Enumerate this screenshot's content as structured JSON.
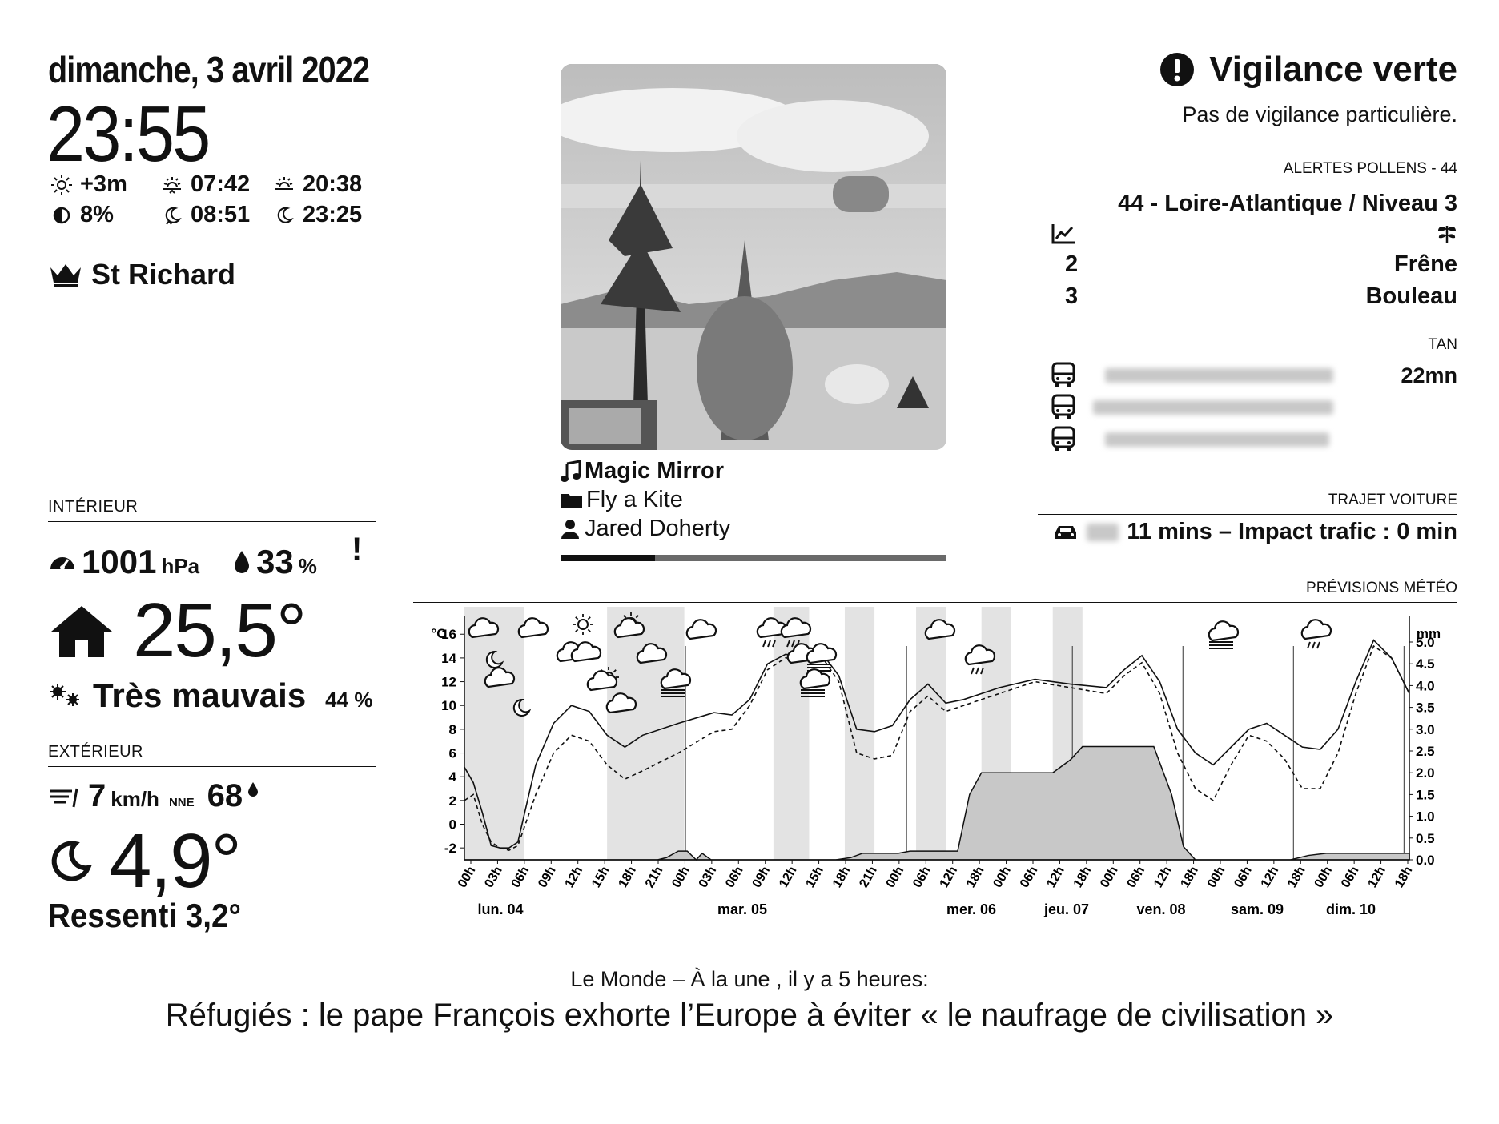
{
  "header": {
    "date": "dimanche, 3 avril 2022",
    "time": "23:55"
  },
  "sun_moon": {
    "daylight_delta": "+3m",
    "sunrise": "07:42",
    "sunset": "20:38",
    "moon_illumination": "8%",
    "moonrise": "08:51",
    "moonset": "23:25"
  },
  "saint": "St Richard",
  "indoor": {
    "section_title": "INTÉRIEUR",
    "pressure": "1001",
    "pressure_unit": "hPa",
    "humidity": "33",
    "humidity_unit": "%",
    "alert_mark": "!",
    "temperature": "25,5°",
    "air_quality": "Très mauvais",
    "air_quality_percent": "44 %"
  },
  "outdoor": {
    "section_title": "EXTÉRIEUR",
    "wind_speed": "7",
    "wind_unit": "km/h",
    "wind_dir": "NNE",
    "humidity": "68",
    "temperature": "4,9°",
    "feels_like": "Ressenti 3,2°"
  },
  "media": {
    "title": "Magic Mirror",
    "album": "Fly a Kite",
    "artist": "Jared Doherty",
    "progress": 0.245
  },
  "vigilance": {
    "title": "Vigilance verte",
    "subtitle": "Pas de vigilance particulière."
  },
  "pollen": {
    "section_title": "ALERTES POLLENS - 44",
    "region": "44 - Loire-Atlantique / Niveau 3",
    "items": [
      {
        "level": "2",
        "name": "Frêne"
      },
      {
        "level": "3",
        "name": "Bouleau"
      }
    ]
  },
  "tan": {
    "section_title": "TAN",
    "eta": "22mn",
    "icons": [
      "bus-icon",
      "bus-icon",
      "bus-icon"
    ]
  },
  "car": {
    "section_title": "TRAJET VOITURE",
    "text": "11 mins – Impact trafic : 0 min"
  },
  "forecast": {
    "section_title": "PRÉVISIONS MÉTÉO",
    "left_unit": "°C",
    "right_unit": "mm"
  },
  "chart_data": {
    "type": "line",
    "title": "",
    "yleft": {
      "ticks": [
        -2,
        0,
        2,
        4,
        6,
        8,
        10,
        12,
        14,
        16
      ],
      "lim": [
        -3,
        17.5
      ]
    },
    "yright": {
      "ticks": [
        "0.0",
        "0.5",
        "1.0",
        "1.5",
        "2.0",
        "2.5",
        "3.0",
        "3.5",
        "4.0",
        "4.5",
        "5.0"
      ],
      "lim": [
        0,
        5
      ]
    },
    "x_hour_labels": [
      "00h",
      "03h",
      "06h",
      "09h",
      "12h",
      "15h",
      "18h",
      "21h",
      "00h",
      "03h",
      "06h",
      "09h",
      "12h",
      "15h",
      "18h",
      "21h",
      "00h",
      "06h",
      "12h",
      "18h",
      "00h",
      "06h",
      "12h",
      "18h",
      "00h",
      "06h",
      "12h",
      "18h",
      "00h",
      "06h",
      "12h",
      "18h",
      "00h",
      "06h",
      "12h",
      "18h"
    ],
    "day_labels": [
      "lun. 04",
      "mar. 05",
      "mer. 06",
      "jeu. 07",
      "ven. 08",
      "sam. 09",
      "dim. 10"
    ],
    "series": [
      {
        "name": "",
        "style": "solid",
        "values": [
          [
            0,
            4.8
          ],
          [
            3,
            3.5
          ],
          [
            6,
            1
          ],
          [
            9,
            -1.8
          ],
          [
            12,
            -2
          ],
          [
            15,
            -2
          ],
          [
            18,
            -1.5
          ],
          [
            24,
            5
          ],
          [
            30,
            8.5
          ],
          [
            36,
            10
          ],
          [
            42,
            9.5
          ],
          [
            48,
            7.5
          ],
          [
            54,
            6.5
          ],
          [
            60,
            7.5
          ],
          [
            72,
            8.5
          ],
          [
            84,
            9.4
          ],
          [
            90,
            9.2
          ],
          [
            96,
            10.5
          ],
          [
            102,
            13.5
          ],
          [
            108,
            14.3
          ],
          [
            114,
            14.2
          ],
          [
            120,
            14.5
          ],
          [
            126,
            12.5
          ],
          [
            132,
            8
          ],
          [
            138,
            7.8
          ],
          [
            144,
            8.3
          ],
          [
            150,
            10.5
          ],
          [
            156,
            11.8
          ],
          [
            162,
            10.2
          ],
          [
            168,
            10.5
          ],
          [
            180,
            11.5
          ],
          [
            192,
            12.2
          ],
          [
            204,
            11.8
          ],
          [
            216,
            11.5
          ],
          [
            222,
            13
          ],
          [
            228,
            14.2
          ],
          [
            234,
            12
          ],
          [
            240,
            8
          ],
          [
            246,
            6
          ],
          [
            252,
            5
          ],
          [
            258,
            6.5
          ],
          [
            264,
            8
          ],
          [
            270,
            8.5
          ],
          [
            276,
            7.5
          ],
          [
            282,
            6.5
          ],
          [
            288,
            6.3
          ],
          [
            294,
            8
          ],
          [
            300,
            12
          ],
          [
            306,
            15.5
          ],
          [
            312,
            14
          ],
          [
            318,
            11
          ]
        ]
      },
      {
        "name": "",
        "style": "dashed",
        "values": [
          [
            0,
            2
          ],
          [
            3,
            2.5
          ],
          [
            6,
            0
          ],
          [
            9,
            -1.5
          ],
          [
            12,
            -2
          ],
          [
            15,
            -2.2
          ],
          [
            18,
            -1.8
          ],
          [
            24,
            2.5
          ],
          [
            30,
            6
          ],
          [
            36,
            7.5
          ],
          [
            42,
            7
          ],
          [
            48,
            5
          ],
          [
            54,
            3.8
          ],
          [
            60,
            4.5
          ],
          [
            72,
            6
          ],
          [
            84,
            7.8
          ],
          [
            90,
            8
          ],
          [
            96,
            10
          ],
          [
            102,
            13
          ],
          [
            108,
            14
          ],
          [
            114,
            14
          ],
          [
            120,
            14.2
          ],
          [
            126,
            12
          ],
          [
            132,
            6
          ],
          [
            138,
            5.5
          ],
          [
            144,
            5.8
          ],
          [
            150,
            9.5
          ],
          [
            156,
            10.8
          ],
          [
            162,
            9.5
          ],
          [
            168,
            10
          ],
          [
            180,
            11
          ],
          [
            192,
            12
          ],
          [
            204,
            11.5
          ],
          [
            216,
            11
          ],
          [
            222,
            12.5
          ],
          [
            228,
            13.6
          ],
          [
            234,
            11
          ],
          [
            240,
            6
          ],
          [
            246,
            3
          ],
          [
            252,
            2
          ],
          [
            258,
            5
          ],
          [
            264,
            7.5
          ],
          [
            270,
            7
          ],
          [
            276,
            5.5
          ],
          [
            282,
            3
          ],
          [
            288,
            3
          ],
          [
            294,
            6
          ],
          [
            300,
            11
          ],
          [
            306,
            15
          ],
          [
            312,
            14
          ],
          [
            318,
            11
          ]
        ]
      },
      {
        "name": "",
        "style": "area",
        "axis": "right",
        "values": [
          [
            0,
            0
          ],
          [
            65,
            0
          ],
          [
            68,
            0.05
          ],
          [
            72,
            0.2
          ],
          [
            75,
            0.2
          ],
          [
            78,
            0
          ],
          [
            80,
            0.15
          ],
          [
            83,
            0
          ],
          [
            125,
            0
          ],
          [
            130,
            0.05
          ],
          [
            134,
            0.15
          ],
          [
            146,
            0.15
          ],
          [
            150,
            0.2
          ],
          [
            166,
            0.2
          ],
          [
            170,
            1.5
          ],
          [
            174,
            2
          ],
          [
            192,
            2
          ],
          [
            198,
            2
          ],
          [
            204,
            2.3
          ],
          [
            208,
            2.6
          ],
          [
            226,
            2.6
          ],
          [
            232,
            2.6
          ],
          [
            238,
            1.5
          ],
          [
            242,
            0.3
          ],
          [
            246,
            0
          ],
          [
            278,
            0
          ],
          [
            284,
            0.1
          ],
          [
            290,
            0.15
          ],
          [
            300,
            0.15
          ],
          [
            318,
            0.15
          ]
        ]
      }
    ],
    "night_bands": [
      [
        0,
        20
      ],
      [
        48,
        74
      ],
      [
        104,
        116
      ],
      [
        128,
        138
      ],
      [
        152,
        162
      ],
      [
        174,
        184
      ],
      [
        198,
        208
      ]
    ]
  },
  "news": {
    "source": "Le Monde – À la une , il y a 5 heures:",
    "headline": "Réfugiés : le pape François exhorte l’Europe à éviter « le naufrage de civilisation »"
  }
}
